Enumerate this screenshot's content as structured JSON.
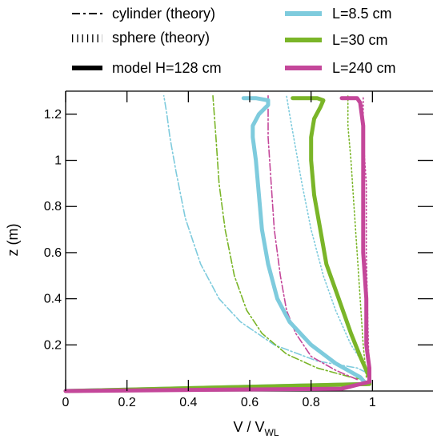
{
  "chart_data": {
    "type": "line",
    "xlabel": "V / V",
    "xlabel_sub": "WL",
    "ylabel": "z (m)",
    "xlim": [
      0,
      1.2
    ],
    "ylim": [
      0,
      1.3
    ],
    "x_ticks": [
      {
        "value": 0,
        "label": "0"
      },
      {
        "value": 0.2,
        "label": "0.2"
      },
      {
        "value": 0.4,
        "label": "0.4"
      },
      {
        "value": 0.6,
        "label": "0.6"
      },
      {
        "value": 0.8,
        "label": "0.8"
      },
      {
        "value": 1.0,
        "label": "1"
      }
    ],
    "y_ticks": [
      {
        "value": 0.2,
        "label": "0.2"
      },
      {
        "value": 0.4,
        "label": "0.4"
      },
      {
        "value": 0.6,
        "label": "0.6"
      },
      {
        "value": 0.8,
        "label": "0.8"
      },
      {
        "value": 1.0,
        "label": "1"
      },
      {
        "value": 1.2,
        "label": "1.2"
      }
    ],
    "grid": false,
    "legend_placement": "top",
    "legend": {
      "styles": [
        {
          "name": "cylinder (theory)",
          "line_style": "dash-dot"
        },
        {
          "name": "sphere (theory)",
          "line_style": "dotted"
        },
        {
          "name": "model H=128 cm",
          "line_style": "solid"
        }
      ],
      "colors": [
        {
          "name": "L=8.5 cm",
          "color": "#7ecbdd"
        },
        {
          "name": "L=30 cm",
          "color": "#7ab528"
        },
        {
          "name": "L=240 cm",
          "color": "#c4479a"
        }
      ]
    },
    "series": [
      {
        "name": "L=8.5 cm",
        "kind": "model H=128 cm",
        "color": "#7ecbdd",
        "style": "solid",
        "points": [
          [
            0,
            0
          ],
          [
            0.98,
            0.03
          ],
          [
            0.96,
            0.06
          ],
          [
            0.88,
            0.12
          ],
          [
            0.8,
            0.2
          ],
          [
            0.73,
            0.3
          ],
          [
            0.69,
            0.4
          ],
          [
            0.66,
            0.55
          ],
          [
            0.64,
            0.7
          ],
          [
            0.63,
            0.85
          ],
          [
            0.62,
            1.0
          ],
          [
            0.61,
            1.1
          ],
          [
            0.61,
            1.15
          ],
          [
            0.63,
            1.2
          ],
          [
            0.66,
            1.24
          ],
          [
            0.66,
            1.26
          ],
          [
            0.62,
            1.27
          ],
          [
            0.58,
            1.27
          ]
        ]
      },
      {
        "name": "L=30 cm",
        "kind": "model H=128 cm",
        "color": "#7ab528",
        "style": "solid",
        "points": [
          [
            0,
            0
          ],
          [
            0.99,
            0.03
          ],
          [
            0.99,
            0.06
          ],
          [
            0.96,
            0.15
          ],
          [
            0.93,
            0.25
          ],
          [
            0.89,
            0.4
          ],
          [
            0.85,
            0.55
          ],
          [
            0.83,
            0.7
          ],
          [
            0.81,
            0.85
          ],
          [
            0.8,
            1.0
          ],
          [
            0.8,
            1.1
          ],
          [
            0.81,
            1.18
          ],
          [
            0.83,
            1.23
          ],
          [
            0.84,
            1.26
          ],
          [
            0.82,
            1.27
          ],
          [
            0.74,
            1.27
          ]
        ]
      },
      {
        "name": "L=240 cm",
        "kind": "model H=128 cm",
        "color": "#c4479a",
        "style": "solid",
        "points": [
          [
            0,
            0
          ],
          [
            0.9,
            0.01
          ],
          [
            0.99,
            0.04
          ],
          [
            0.99,
            0.1
          ],
          [
            0.98,
            0.2
          ],
          [
            0.98,
            0.4
          ],
          [
            0.97,
            0.6
          ],
          [
            0.97,
            0.8
          ],
          [
            0.97,
            1.0
          ],
          [
            0.97,
            1.15
          ],
          [
            0.96,
            1.25
          ],
          [
            0.95,
            1.27
          ],
          [
            0.9,
            1.27
          ]
        ]
      },
      {
        "name": "L=8.5 cm",
        "kind": "cylinder (theory)",
        "color": "#7ecbdd",
        "style": "dash-dot",
        "points": [
          [
            0.98,
            0.08
          ],
          [
            0.95,
            0.1
          ],
          [
            0.82,
            0.13
          ],
          [
            0.68,
            0.2
          ],
          [
            0.57,
            0.3
          ],
          [
            0.5,
            0.4
          ],
          [
            0.44,
            0.55
          ],
          [
            0.39,
            0.75
          ],
          [
            0.36,
            0.95
          ],
          [
            0.34,
            1.1
          ],
          [
            0.33,
            1.2
          ],
          [
            0.32,
            1.28
          ]
        ]
      },
      {
        "name": "L=8.5 cm",
        "kind": "sphere (theory)",
        "color": "#7ecbdd",
        "style": "dotted",
        "points": [
          [
            0.98,
            0.1
          ],
          [
            0.93,
            0.2
          ],
          [
            0.88,
            0.35
          ],
          [
            0.84,
            0.5
          ],
          [
            0.8,
            0.7
          ],
          [
            0.77,
            0.9
          ],
          [
            0.75,
            1.05
          ],
          [
            0.73,
            1.2
          ],
          [
            0.72,
            1.28
          ]
        ]
      },
      {
        "name": "L=30 cm",
        "kind": "cylinder (theory)",
        "color": "#7ab528",
        "style": "dash-dot",
        "points": [
          [
            0.97,
            0.05
          ],
          [
            0.93,
            0.06
          ],
          [
            0.82,
            0.1
          ],
          [
            0.72,
            0.16
          ],
          [
            0.64,
            0.25
          ],
          [
            0.59,
            0.35
          ],
          [
            0.55,
            0.5
          ],
          [
            0.52,
            0.7
          ],
          [
            0.5,
            0.9
          ],
          [
            0.49,
            1.1
          ],
          [
            0.48,
            1.28
          ]
        ]
      },
      {
        "name": "L=30 cm",
        "kind": "sphere (theory)",
        "color": "#7ab528",
        "style": "dotted",
        "points": [
          [
            0.98,
            0.06
          ],
          [
            0.97,
            0.2
          ],
          [
            0.96,
            0.4
          ],
          [
            0.95,
            0.6
          ],
          [
            0.94,
            0.8
          ],
          [
            0.93,
            1.0
          ],
          [
            0.92,
            1.15
          ],
          [
            0.92,
            1.28
          ]
        ]
      },
      {
        "name": "L=240 cm",
        "kind": "cylinder (theory)",
        "color": "#c4479a",
        "style": "dash-dot",
        "points": [
          [
            0.95,
            0.05
          ],
          [
            0.88,
            0.09
          ],
          [
            0.8,
            0.15
          ],
          [
            0.75,
            0.25
          ],
          [
            0.72,
            0.35
          ],
          [
            0.7,
            0.5
          ],
          [
            0.68,
            0.7
          ],
          [
            0.67,
            0.9
          ],
          [
            0.66,
            1.1
          ],
          [
            0.66,
            1.28
          ]
        ]
      },
      {
        "name": "L=240 cm",
        "kind": "sphere (theory)",
        "color": "#c4479a",
        "style": "dotted",
        "points": [
          [
            0.99,
            0.05
          ],
          [
            0.985,
            0.3
          ],
          [
            0.98,
            0.6
          ],
          [
            0.98,
            0.9
          ],
          [
            0.97,
            1.1
          ],
          [
            0.97,
            1.28
          ]
        ]
      }
    ]
  }
}
